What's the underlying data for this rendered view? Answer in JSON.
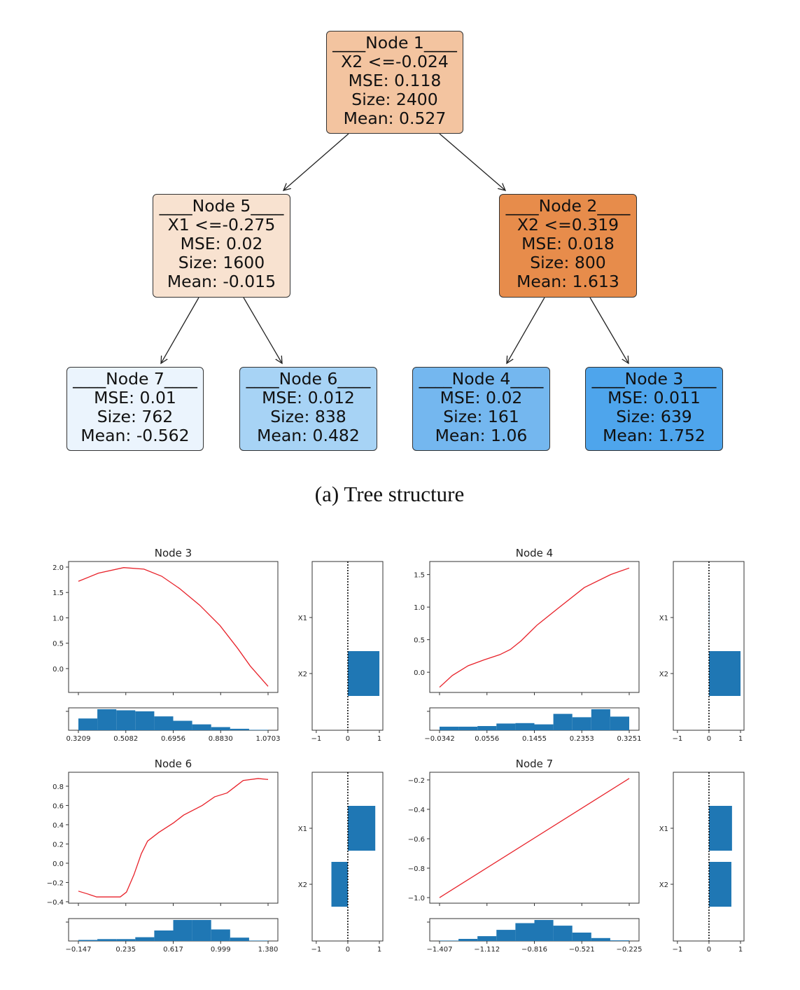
{
  "tree": {
    "nodes": [
      {
        "id": "node1",
        "lines": [
          "____Node 1____",
          "X2 <=-0.024",
          "MSE: 0.118",
          "Size: 2400",
          "Mean: 0.527"
        ],
        "color": "#f3c4a0"
      },
      {
        "id": "node5",
        "lines": [
          "____Node 5____",
          "X1 <=-0.275",
          "MSE: 0.02",
          "Size: 1600",
          "Mean: -0.015"
        ],
        "color": "#f8e2d0"
      },
      {
        "id": "node2",
        "lines": [
          "____Node 2____",
          "X2 <=0.319",
          "MSE: 0.018",
          "Size: 800",
          "Mean: 1.613"
        ],
        "color": "#e78c4b"
      },
      {
        "id": "node7",
        "lines": [
          "____Node 7____",
          "MSE: 0.01",
          "Size: 762",
          "Mean: -0.562"
        ],
        "color": "#ebf4fd"
      },
      {
        "id": "node6",
        "lines": [
          "____Node 6____",
          "MSE: 0.012",
          "Size: 838",
          "Mean: 0.482"
        ],
        "color": "#a7d3f5"
      },
      {
        "id": "node4",
        "lines": [
          "____Node 4____",
          "MSE: 0.02",
          "Size: 161",
          "Mean: 1.06"
        ],
        "color": "#74b7ef"
      },
      {
        "id": "node3",
        "lines": [
          "____Node 3____",
          "MSE: 0.011",
          "Size: 639",
          "Mean: 1.752"
        ],
        "color": "#4ea5ec"
      }
    ],
    "edges": [
      [
        "node1",
        "node5"
      ],
      [
        "node1",
        "node2"
      ],
      [
        "node5",
        "node7"
      ],
      [
        "node5",
        "node6"
      ],
      [
        "node2",
        "node4"
      ],
      [
        "node2",
        "node3"
      ]
    ]
  },
  "caption": "(a) Tree structure",
  "colors": {
    "curve": "#e8222a",
    "bar": "#1f77b4",
    "axis": "#333333"
  },
  "chart_data": [
    {
      "title": "Node 3",
      "type": "line",
      "x_ticks": [
        "0.3209",
        "0.5082",
        "0.6956",
        "0.8830",
        "1.0703"
      ],
      "xlim": [
        0.3209,
        1.0703
      ],
      "ylim": [
        -0.47,
        2.11
      ],
      "y_ticks": [
        0.0,
        0.5,
        1.0,
        1.5,
        2.0
      ],
      "y_tick_labels": [
        "0.0",
        "0.5",
        "1.0",
        "1.5",
        "2.0"
      ],
      "curve": [
        [
          0.3209,
          1.72
        ],
        [
          0.4,
          1.88
        ],
        [
          0.5,
          1.99
        ],
        [
          0.58,
          1.96
        ],
        [
          0.65,
          1.82
        ],
        [
          0.72,
          1.58
        ],
        [
          0.8,
          1.25
        ],
        [
          0.88,
          0.85
        ],
        [
          0.95,
          0.4
        ],
        [
          1.0,
          0.05
        ],
        [
          1.0703,
          -0.35
        ]
      ],
      "histogram": [
        0.56,
        1.0,
        0.95,
        0.9,
        0.66,
        0.45,
        0.28,
        0.15,
        0.07,
        0.02
      ],
      "importance": {
        "features": [
          "X1",
          "X2"
        ],
        "values": [
          0,
          1.0
        ],
        "xlim": [
          -1.13,
          1.11
        ],
        "x_ticks": [
          "−1",
          "0",
          "1"
        ]
      }
    },
    {
      "title": "Node 4",
      "type": "line",
      "x_ticks": [
        "−0.0342",
        "0.0556",
        "0.1455",
        "0.2353",
        "0.3251"
      ],
      "xlim": [
        -0.0342,
        0.3251
      ],
      "ylim": [
        -0.31,
        1.7
      ],
      "y_ticks": [
        0.0,
        0.5,
        1.0,
        1.5
      ],
      "y_tick_labels": [
        "0.0",
        "0.5",
        "1.0",
        "1.5"
      ],
      "curve": [
        [
          -0.0342,
          -0.23
        ],
        [
          -0.01,
          -0.05
        ],
        [
          0.02,
          0.1
        ],
        [
          0.05,
          0.19
        ],
        [
          0.08,
          0.27
        ],
        [
          0.1,
          0.35
        ],
        [
          0.12,
          0.48
        ],
        [
          0.15,
          0.72
        ],
        [
          0.19,
          0.98
        ],
        [
          0.24,
          1.3
        ],
        [
          0.29,
          1.5
        ],
        [
          0.3251,
          1.6
        ]
      ],
      "histogram": [
        0.17,
        0.17,
        0.2,
        0.32,
        0.34,
        0.28,
        0.78,
        0.62,
        1.0,
        0.65
      ],
      "importance": {
        "features": [
          "X1",
          "X2"
        ],
        "values": [
          0.01,
          1.0
        ],
        "xlim": [
          -1.13,
          1.11
        ],
        "x_ticks": [
          "−1",
          "0",
          "1"
        ]
      }
    },
    {
      "title": "Node 6",
      "type": "line",
      "x_ticks": [
        "−0.147",
        "0.235",
        "0.617",
        "0.999",
        "1.380"
      ],
      "xlim": [
        -0.147,
        1.38
      ],
      "ylim": [
        -0.415,
        0.945
      ],
      "y_ticks": [
        -0.4,
        -0.2,
        0.0,
        0.2,
        0.4,
        0.6,
        0.8
      ],
      "y_tick_labels": [
        "−0.4",
        "−0.2",
        "0.0",
        "0.2",
        "0.4",
        "0.6",
        "0.8"
      ],
      "curve": [
        [
          -0.147,
          -0.29
        ],
        [
          -0.07,
          -0.32
        ],
        [
          0.0,
          -0.35
        ],
        [
          0.1,
          -0.35
        ],
        [
          0.19,
          -0.35
        ],
        [
          0.24,
          -0.3
        ],
        [
          0.3,
          -0.12
        ],
        [
          0.36,
          0.1
        ],
        [
          0.41,
          0.23
        ],
        [
          0.5,
          0.32
        ],
        [
          0.62,
          0.42
        ],
        [
          0.7,
          0.5
        ],
        [
          0.85,
          0.6
        ],
        [
          0.95,
          0.69
        ],
        [
          1.05,
          0.73
        ],
        [
          1.12,
          0.8
        ],
        [
          1.18,
          0.86
        ],
        [
          1.3,
          0.88
        ],
        [
          1.38,
          0.87
        ]
      ],
      "histogram": [
        0.05,
        0.09,
        0.09,
        0.18,
        0.5,
        1.0,
        1.0,
        0.55,
        0.16,
        0.02
      ],
      "importance": {
        "features": [
          "X1",
          "X2"
        ],
        "values": [
          0.87,
          -0.52
        ],
        "xlim": [
          -1.13,
          1.11
        ],
        "x_ticks": [
          "−1",
          "0",
          "1"
        ]
      }
    },
    {
      "title": "Node 7",
      "type": "line",
      "x_ticks": [
        "−1.407",
        "−1.112",
        "−0.816",
        "−0.521",
        "−0.225"
      ],
      "xlim": [
        -1.407,
        -0.225
      ],
      "ylim": [
        -1.038,
        -0.148
      ],
      "y_ticks": [
        -1.0,
        -0.8,
        -0.6,
        -0.4,
        -0.2
      ],
      "y_tick_labels": [
        "−1.0",
        "−0.8",
        "−0.6",
        "−0.4",
        "−0.2"
      ],
      "curve": [
        [
          -1.407,
          -1.0
        ],
        [
          -0.225,
          -0.19
        ]
      ],
      "histogram": [
        0.02,
        0.1,
        0.23,
        0.53,
        0.85,
        1.0,
        0.73,
        0.4,
        0.14,
        0.03
      ],
      "importance": {
        "features": [
          "X1",
          "X2"
        ],
        "values": [
          0.73,
          0.71
        ],
        "xlim": [
          -1.13,
          1.11
        ],
        "x_ticks": [
          "−1",
          "0",
          "1"
        ]
      }
    }
  ]
}
